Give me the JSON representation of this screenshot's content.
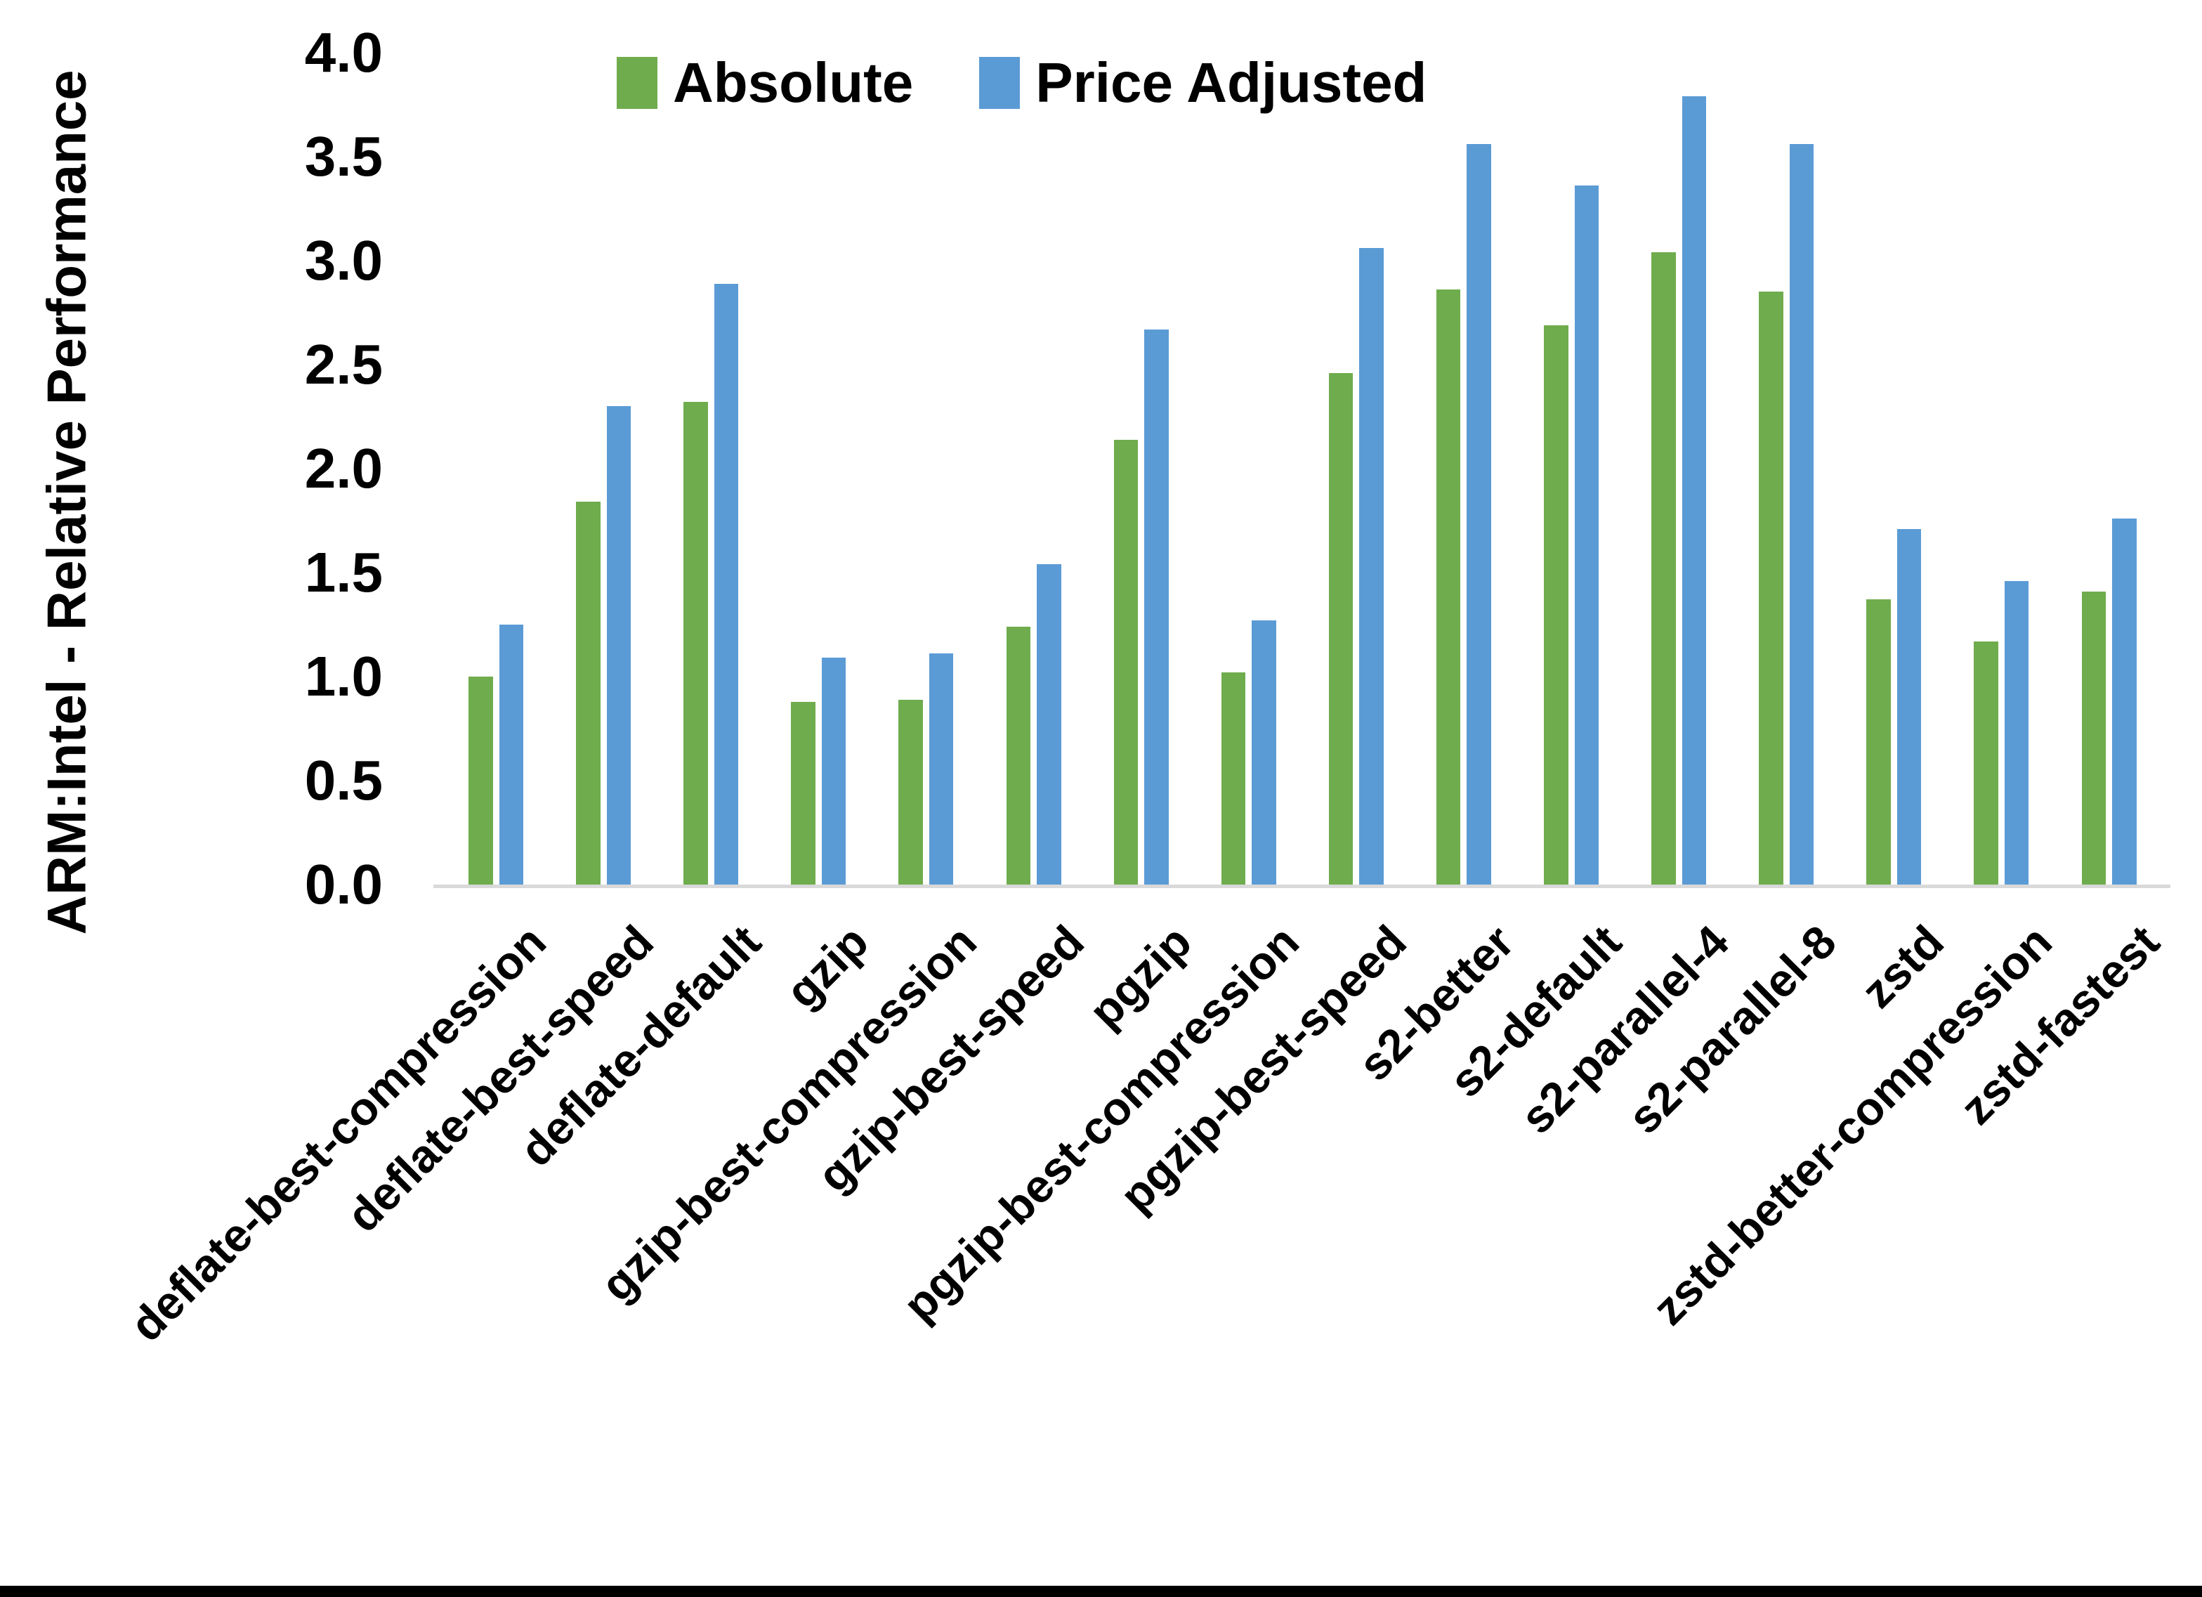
{
  "figure": {
    "background_color": "#ffffff",
    "bottom_border_color": "#000000"
  },
  "legend": {
    "position": "top",
    "items": [
      {
        "label": "Absolute",
        "color": "#6FAC4D"
      },
      {
        "label": "Price Adjusted",
        "color": "#5B9BD5"
      }
    ]
  },
  "y_axis": {
    "title": "ARM:Intel - Relative Performance",
    "tick_labels": [
      "0.0",
      "0.5",
      "1.0",
      "1.5",
      "2.0",
      "2.5",
      "3.0",
      "3.5",
      "4.0"
    ],
    "axis_line_color": "#d9d9d9"
  },
  "chart_data": {
    "type": "bar",
    "title": "",
    "xlabel": "",
    "ylabel": "ARM:Intel - Relative Performance",
    "ylim": [
      0.0,
      4.0
    ],
    "ytick_step": 0.5,
    "grid": false,
    "legend_position": "top",
    "categories": [
      "deflate-best-compression",
      "deflate-best-speed",
      "deflate-default",
      "gzip",
      "gzip-best-compression",
      "gzip-best-speed",
      "pgzip",
      "pgzip-best-compression",
      "pgzip-best-speed",
      "s2-better",
      "s2-default",
      "s2-parallel-4",
      "s2-parallel-8",
      "zstd",
      "zstd-better-compression",
      "zstd-fastest"
    ],
    "series": [
      {
        "name": "Absolute",
        "color": "#6FAC4D",
        "values": [
          1.0,
          1.84,
          2.32,
          0.88,
          0.89,
          1.24,
          2.14,
          1.02,
          2.46,
          2.86,
          2.69,
          3.04,
          2.85,
          1.37,
          1.17,
          1.41
        ]
      },
      {
        "name": "Price Adjusted",
        "color": "#5B9BD5",
        "values": [
          1.25,
          2.3,
          2.89,
          1.09,
          1.11,
          1.54,
          2.67,
          1.27,
          3.06,
          3.56,
          3.36,
          3.79,
          3.56,
          1.71,
          1.46,
          1.76
        ]
      }
    ]
  }
}
